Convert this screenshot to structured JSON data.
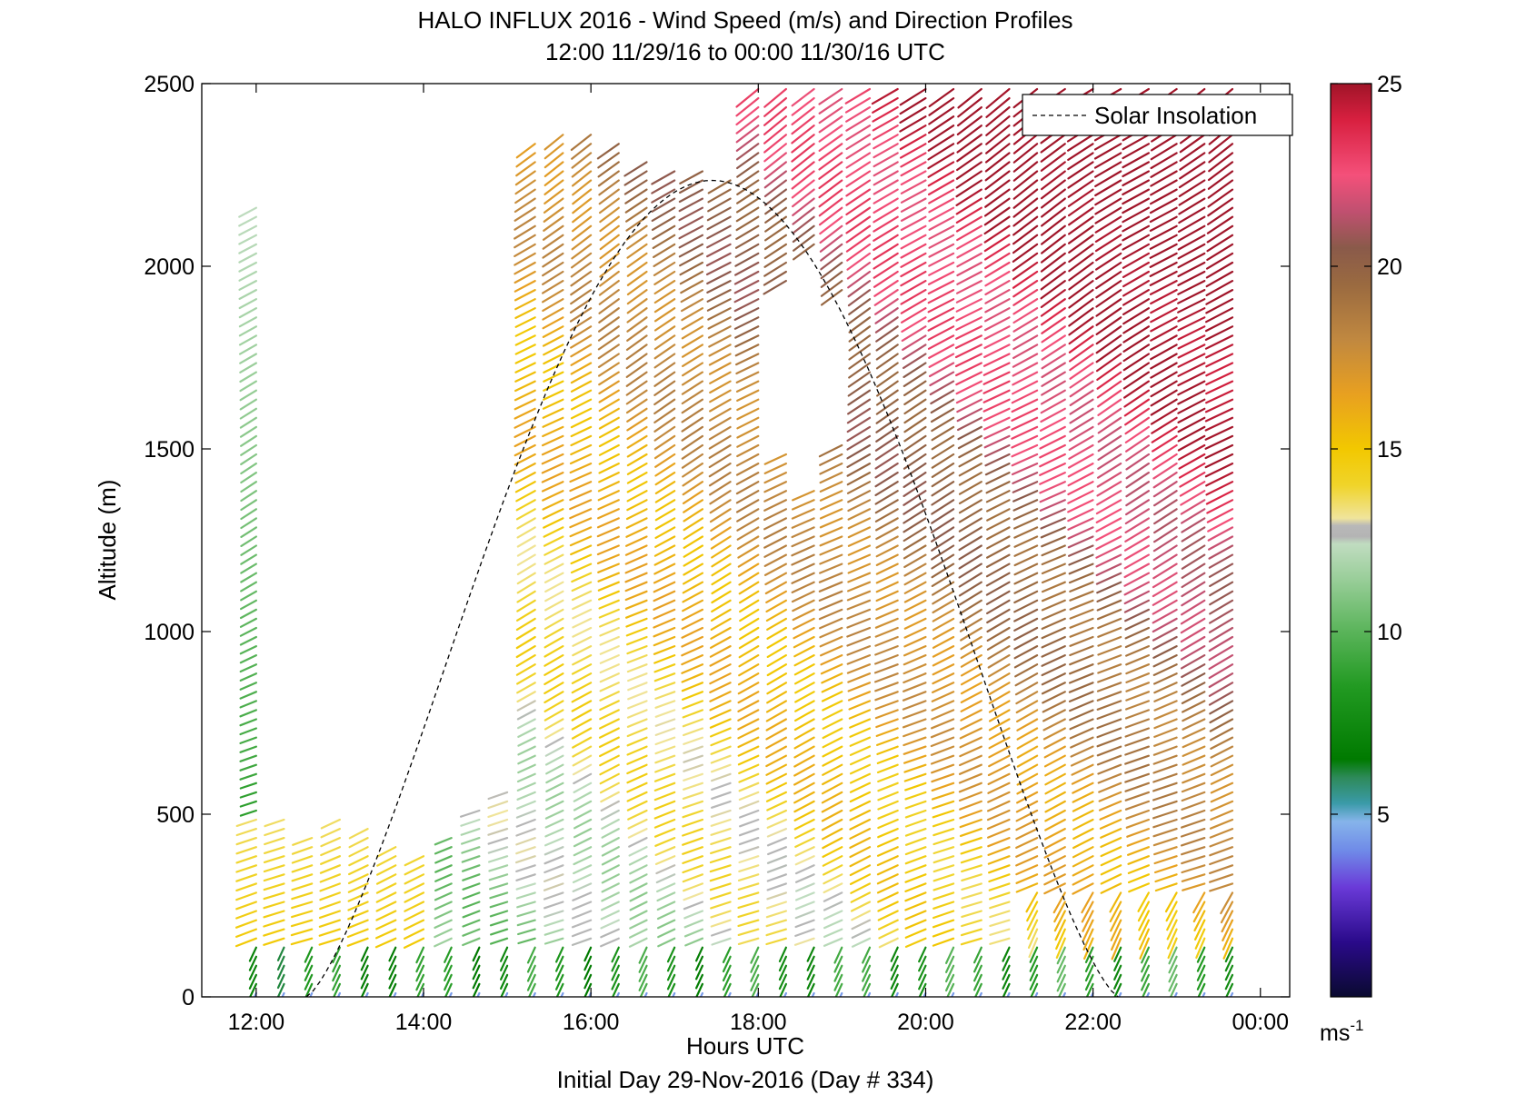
{
  "chart_data": {
    "type": "vector-field",
    "title": "HALO INFLUX 2016 - Wind Speed (m/s) and Direction Profiles",
    "subtitle": "12:00 11/29/16 to 00:00 11/30/16  UTC",
    "xlabel": "Hours UTC",
    "xlabel_sub": "Initial Day 29-Nov-2016 (Day # 334)",
    "ylabel": "Altitude (m)",
    "xlim_hours": [
      11.35,
      24.35
    ],
    "ylim": [
      0,
      2500
    ],
    "x_ticks": [
      {
        "hour": 12,
        "label": "12:00"
      },
      {
        "hour": 14,
        "label": "14:00"
      },
      {
        "hour": 16,
        "label": "16:00"
      },
      {
        "hour": 18,
        "label": "18:00"
      },
      {
        "hour": 20,
        "label": "20:00"
      },
      {
        "hour": 22,
        "label": "22:00"
      },
      {
        "hour": 24,
        "label": "00:00"
      }
    ],
    "y_ticks": [
      {
        "value": 0,
        "label": "0"
      },
      {
        "value": 500,
        "label": "500"
      },
      {
        "value": 1000,
        "label": "1000"
      },
      {
        "value": 1500,
        "label": "1500"
      },
      {
        "value": 2000,
        "label": "2000"
      },
      {
        "value": 2500,
        "label": "2500"
      }
    ],
    "legend": {
      "position": "top-right",
      "entries": [
        {
          "label": "Solar Insolation",
          "style": "dashed",
          "color": "#000000"
        }
      ]
    },
    "solar_insolation": {
      "start_hour": 12.6,
      "peak_hour": 17.45,
      "end_hour": 22.3,
      "peak_altitude_equiv": 2235
    },
    "colorbar": {
      "min": 0,
      "max": 25,
      "unit": "ms",
      "unit_superscript": "-1",
      "ticks": [
        {
          "value": 5,
          "label": "5"
        },
        {
          "value": 10,
          "label": "10"
        },
        {
          "value": 15,
          "label": "15"
        },
        {
          "value": 20,
          "label": "20"
        },
        {
          "value": 25,
          "label": "25"
        }
      ],
      "stops": [
        {
          "v": 0,
          "c": "#0a0a30"
        },
        {
          "v": 1.5,
          "c": "#2a0a8a"
        },
        {
          "v": 3,
          "c": "#6a3ad8"
        },
        {
          "v": 4,
          "c": "#6f8ae8"
        },
        {
          "v": 4.8,
          "c": "#86b4ea"
        },
        {
          "v": 5.3,
          "c": "#3a9aa8"
        },
        {
          "v": 6,
          "c": "#2e8a5a"
        },
        {
          "v": 6.5,
          "c": "#007a00"
        },
        {
          "v": 8.5,
          "c": "#229a22"
        },
        {
          "v": 10,
          "c": "#5ab45a"
        },
        {
          "v": 11.5,
          "c": "#9ccf9c"
        },
        {
          "v": 12.4,
          "c": "#c0dcc0"
        },
        {
          "v": 12.6,
          "c": "#b4b4b4"
        },
        {
          "v": 12.9,
          "c": "#b8b8b8"
        },
        {
          "v": 13.1,
          "c": "#f0e49c"
        },
        {
          "v": 14,
          "c": "#f0d42a"
        },
        {
          "v": 15,
          "c": "#f2c800"
        },
        {
          "v": 16.5,
          "c": "#e8a020"
        },
        {
          "v": 18,
          "c": "#c08840"
        },
        {
          "v": 19.5,
          "c": "#9a6a40"
        },
        {
          "v": 20.5,
          "c": "#8a5a4a"
        },
        {
          "v": 21.5,
          "c": "#c05070"
        },
        {
          "v": 22.5,
          "c": "#f4507a"
        },
        {
          "v": 24,
          "c": "#d82040"
        },
        {
          "v": 25,
          "c": "#a01428"
        }
      ]
    },
    "wind_profiles": {
      "time_start_hour": 12.0,
      "time_step_hours": 0.3333,
      "time_steps": 36,
      "altitude_step_m": 25,
      "notes": "per-profile top altitudes (m) for each time step",
      "profile_tops_m": [
        2180,
        500,
        450,
        500,
        460,
        420,
        400,
        440,
        520,
        560,
        2350,
        2380,
        2380,
        2350,
        2300,
        2280,
        2260,
        2240,
        2500,
        2500,
        2500,
        2500,
        2500,
        2500,
        2500,
        2500,
        2500,
        2500,
        2500,
        2500,
        2500,
        2500,
        2500,
        2500,
        2500,
        2500
      ]
    }
  }
}
